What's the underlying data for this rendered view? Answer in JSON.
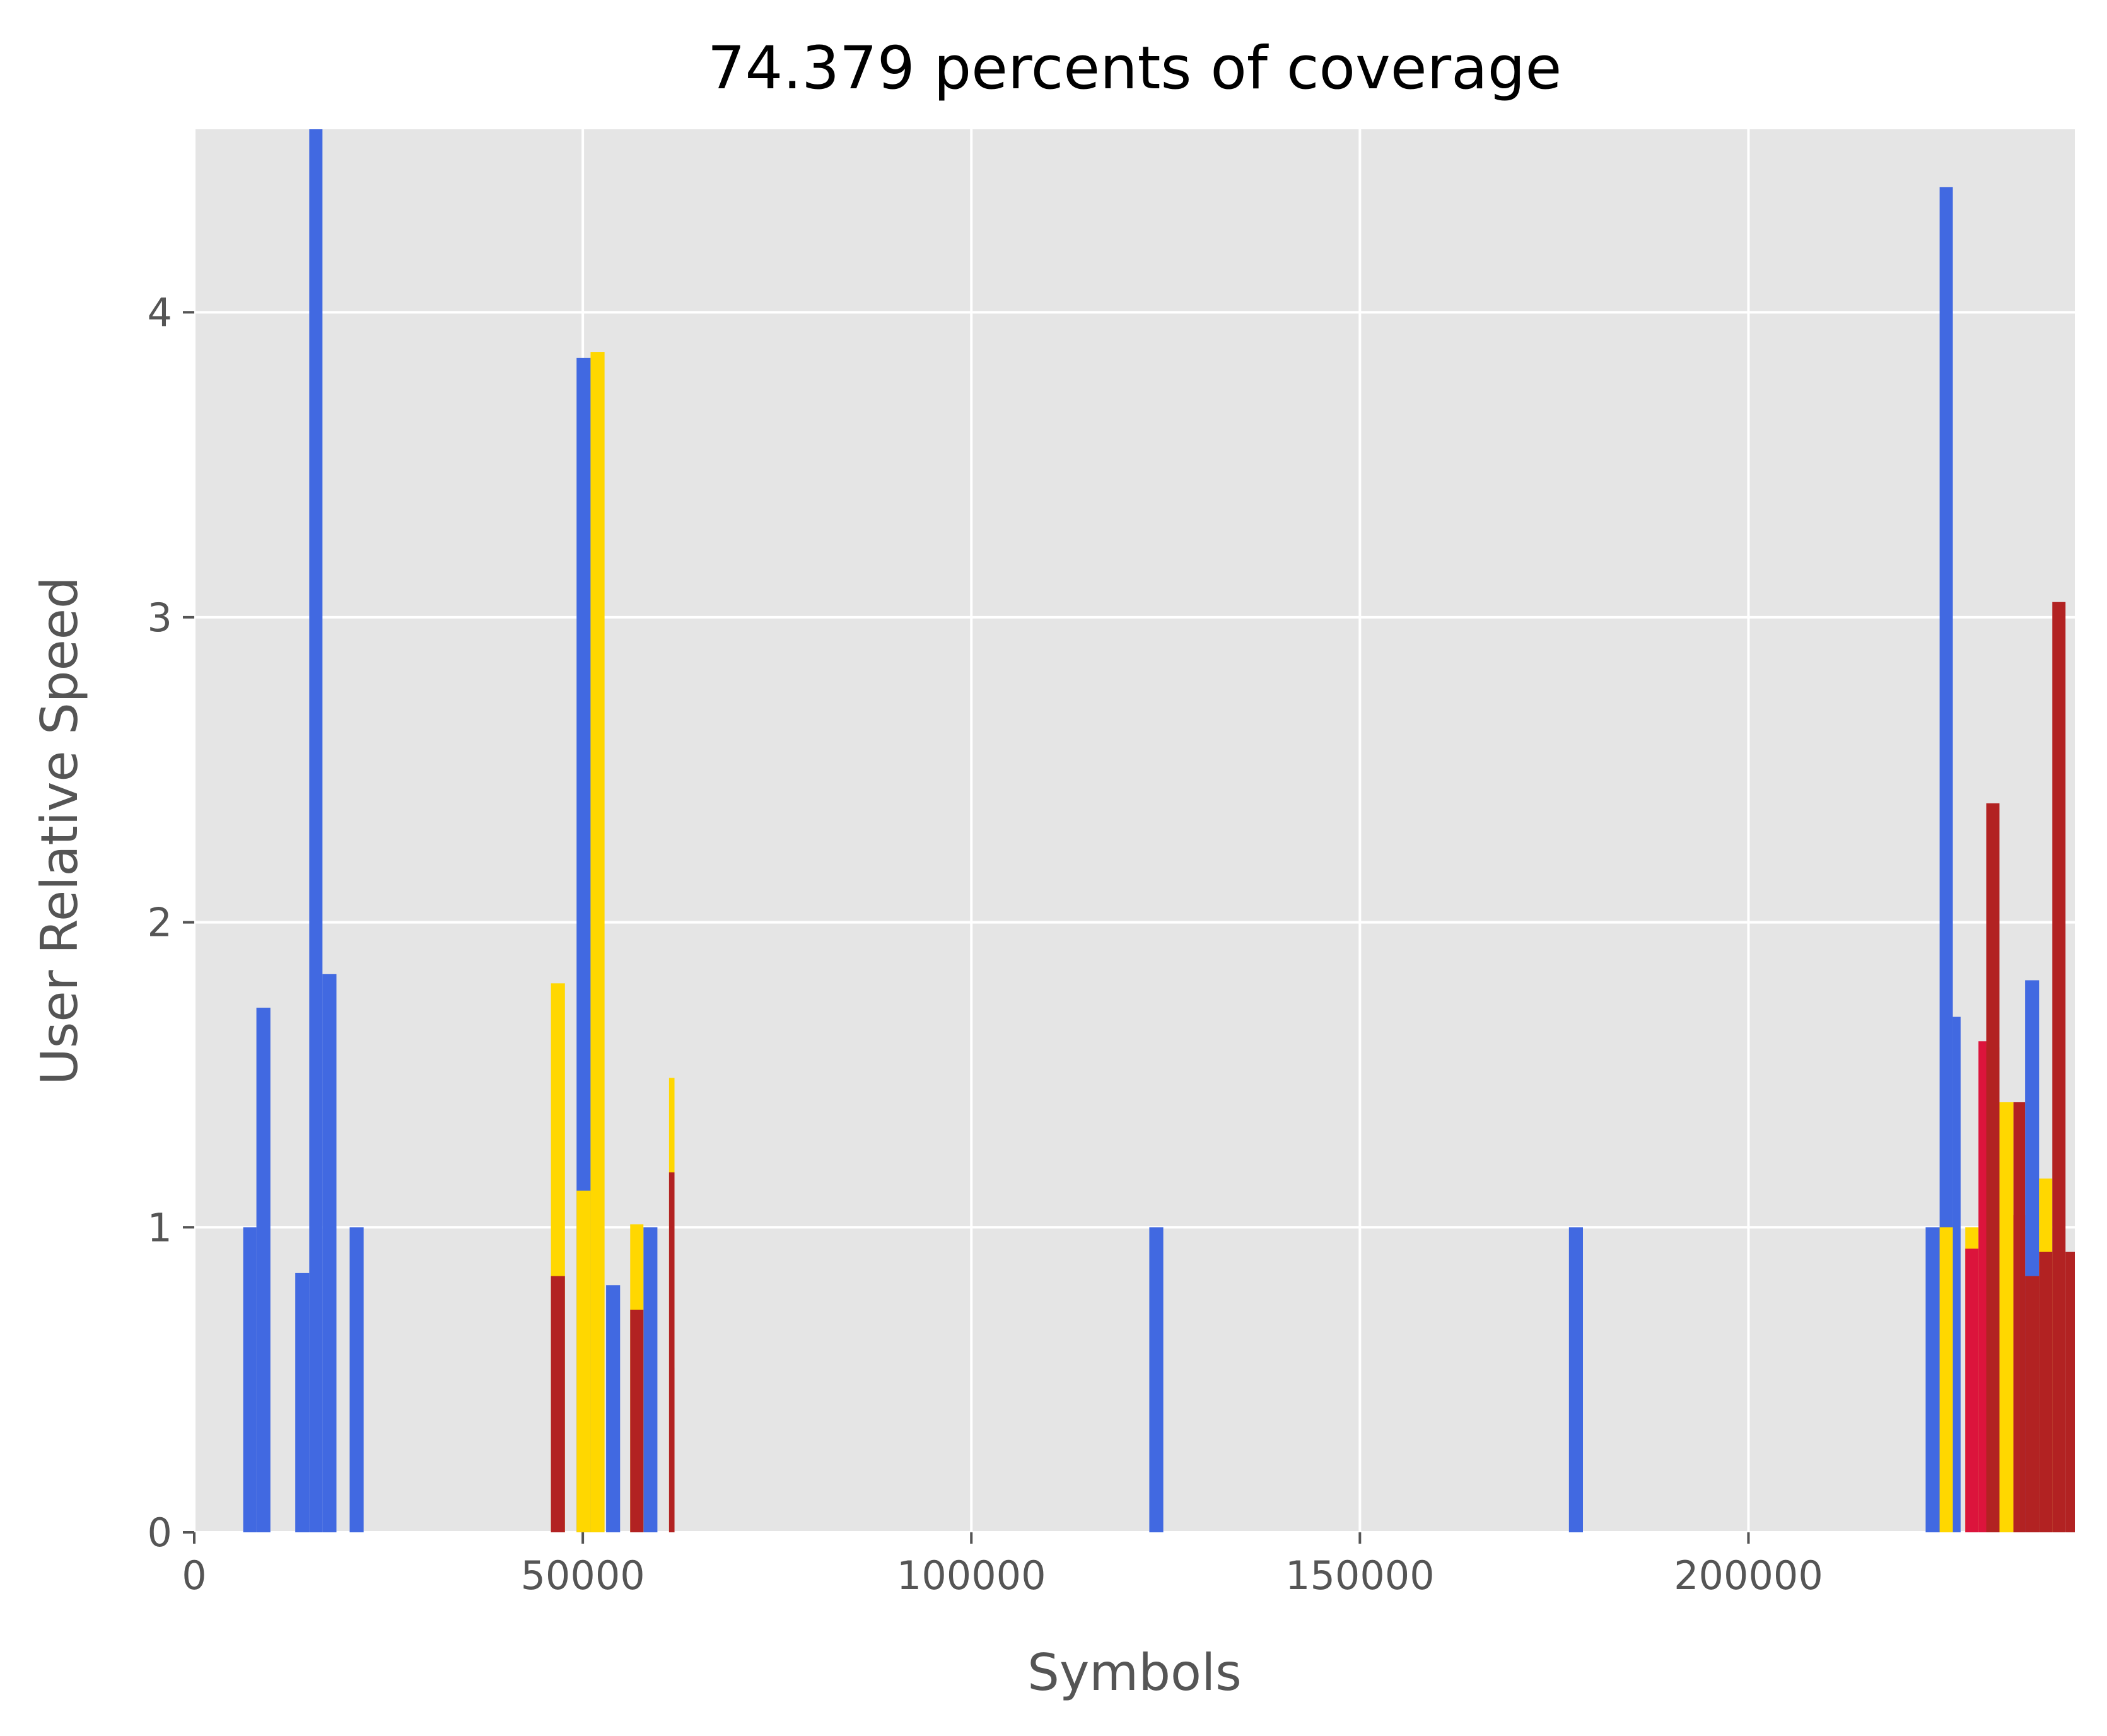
{
  "colors": {
    "background": "#ffffff",
    "plot_background": "#e5e5e5",
    "grid": "#ffffff",
    "tick": "#555555",
    "blue": "#4169e1",
    "gold": "#ffd700",
    "crimson": "#dc143c",
    "firebrick": "#b22222"
  },
  "chart_data": {
    "type": "bar",
    "title": "74.379 percents of coverage",
    "xlabel": "Symbols",
    "ylabel": "User Relative Speed",
    "xlim": [
      0,
      242000
    ],
    "ylim": [
      0,
      4.6
    ],
    "xticks": [
      0,
      50000,
      100000,
      150000,
      200000
    ],
    "yticks": [
      0,
      1,
      2,
      3,
      4
    ],
    "grid": true,
    "legend": "none",
    "series": [
      {
        "color": "#4169e1",
        "bars": [
          {
            "x0": 6300,
            "x1": 8000,
            "y": 1.0
          },
          {
            "x0": 8000,
            "x1": 9800,
            "y": 1.72
          },
          {
            "x0": 13000,
            "x1": 14800,
            "y": 0.85
          },
          {
            "x0": 14800,
            "x1": 16500,
            "y": 4.6
          },
          {
            "x0": 16500,
            "x1": 18300,
            "y": 1.83
          },
          {
            "x0": 20000,
            "x1": 21800,
            "y": 1.0
          },
          {
            "x0": 49200,
            "x1": 51000,
            "y": 3.85
          },
          {
            "x0": 53000,
            "x1": 54800,
            "y": 0.81
          },
          {
            "x0": 57800,
            "x1": 59600,
            "y": 1.0
          },
          {
            "x0": 122900,
            "x1": 124700,
            "y": 1.0
          },
          {
            "x0": 176900,
            "x1": 178700,
            "y": 1.0
          },
          {
            "x0": 222800,
            "x1": 224600,
            "y": 1.0
          },
          {
            "x0": 224600,
            "x1": 226300,
            "y": 4.41
          },
          {
            "x0": 226300,
            "x1": 227300,
            "y": 1.69
          },
          {
            "x0": 235600,
            "x1": 237400,
            "y": 1.81
          }
        ]
      },
      {
        "color": "#ffd700",
        "bars": [
          {
            "x0": 45900,
            "x1": 47700,
            "y": 1.8
          },
          {
            "x0": 49200,
            "x1": 51000,
            "y": 1.12
          },
          {
            "x0": 51000,
            "x1": 52800,
            "y": 3.87
          },
          {
            "x0": 56100,
            "x1": 57800,
            "y": 1.01
          },
          {
            "x0": 61100,
            "x1": 61800,
            "y": 1.49
          },
          {
            "x0": 224600,
            "x1": 226300,
            "y": 1.0
          },
          {
            "x0": 227900,
            "x1": 229600,
            "y": 1.0
          },
          {
            "x0": 232300,
            "x1": 234100,
            "y": 1.41
          },
          {
            "x0": 237400,
            "x1": 239100,
            "y": 1.16
          }
        ]
      },
      {
        "color": "#dc143c",
        "bars": [
          {
            "x0": 61400,
            "x1": 61800,
            "y": 0.54
          },
          {
            "x0": 227900,
            "x1": 229600,
            "y": 0.93
          },
          {
            "x0": 229600,
            "x1": 230600,
            "y": 1.61
          },
          {
            "x0": 230600,
            "x1": 232300,
            "y": 1.59
          },
          {
            "x0": 234100,
            "x1": 235600,
            "y": 1.04
          }
        ]
      },
      {
        "color": "#b22222",
        "bars": [
          {
            "x0": 45900,
            "x1": 47700,
            "y": 0.84
          },
          {
            "x0": 56100,
            "x1": 57800,
            "y": 0.73
          },
          {
            "x0": 61100,
            "x1": 61800,
            "y": 1.18
          },
          {
            "x0": 230600,
            "x1": 232300,
            "y": 2.39
          },
          {
            "x0": 234100,
            "x1": 235600,
            "y": 1.41
          },
          {
            "x0": 235600,
            "x1": 237400,
            "y": 0.84
          },
          {
            "x0": 237400,
            "x1": 239100,
            "y": 0.92
          },
          {
            "x0": 239100,
            "x1": 240800,
            "y": 3.05
          },
          {
            "x0": 240800,
            "x1": 242000,
            "y": 0.92
          }
        ]
      }
    ]
  }
}
